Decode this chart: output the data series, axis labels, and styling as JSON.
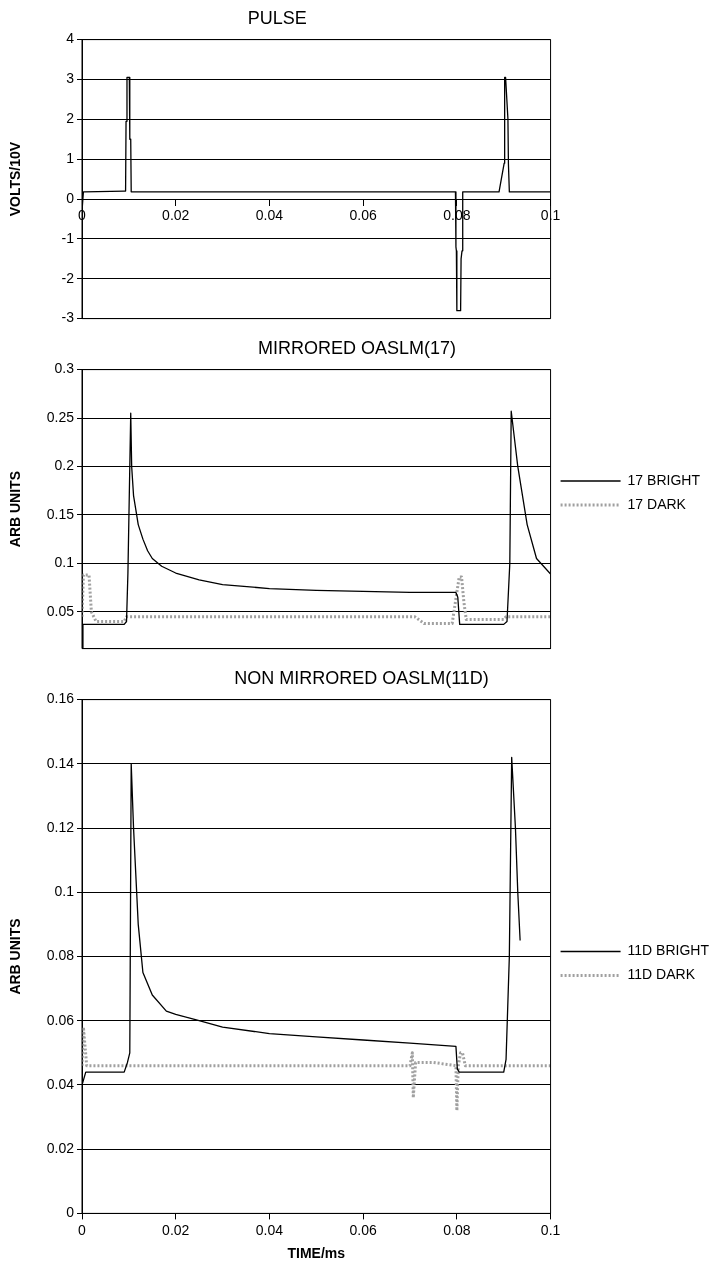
{
  "chart_data": [
    {
      "type": "line",
      "title": "PULSE",
      "ylabel": "VOLTS/10V",
      "xlim": [
        0,
        0.1
      ],
      "xticks": [
        0,
        0.02,
        0.04,
        0.06,
        0.08,
        0.1
      ],
      "ylim": [
        -3,
        4
      ],
      "yticks": [
        -3,
        -2,
        -1,
        0,
        1,
        2,
        3,
        4
      ],
      "grid": "y",
      "legend": false,
      "marker": "none",
      "series": [
        {
          "color": "#000000",
          "line_style": "solid",
          "x": [
            0,
            0.0003,
            0.0005,
            0.009,
            0.0093,
            0.0094,
            0.0096,
            0.0101,
            0.0102,
            0.0104,
            0.0105,
            0.03,
            0.05,
            0.07,
            0.0797,
            0.0798,
            0.0799,
            0.08,
            0.0808,
            0.0809,
            0.0811,
            0.0812,
            0.0813,
            0.089,
            0.0901,
            0.0902,
            0.0904,
            0.0909,
            0.091,
            0.0912,
            0.1
          ],
          "values": [
            -0.3,
            0.18,
            0.18,
            0.2,
            0.2,
            1.95,
            3.05,
            3.05,
            1.5,
            1.5,
            0.18,
            0.18,
            0.18,
            0.18,
            0.18,
            -1.2,
            -1.3,
            -2.8,
            -2.8,
            -1.5,
            -1.3,
            0.18,
            0.18,
            0.18,
            0.9,
            3.05,
            3.05,
            2.0,
            0.9,
            0.18,
            0.18
          ]
        }
      ]
    },
    {
      "type": "line",
      "title": "MIRRORED OASLM(17)",
      "ylabel": "ARB UNITS",
      "xlim": [
        0,
        0.1
      ],
      "ylim": [
        0.012,
        0.3
      ],
      "yticks": [
        0.05,
        0.1,
        0.15,
        0.2,
        0.25,
        0.3
      ],
      "grid": "y",
      "legend": "right",
      "tick_labels": "y",
      "marker": "none",
      "series": [
        {
          "name": "17 BRIGHT",
          "color": "#000000",
          "line_style": "solid",
          "x": [
            0,
            0.0002,
            0.009,
            0.0095,
            0.0098,
            0.0104,
            0.0106,
            0.011,
            0.012,
            0.013,
            0.014,
            0.015,
            0.017,
            0.02,
            0.025,
            0.03,
            0.04,
            0.05,
            0.06,
            0.07,
            0.0798,
            0.0802,
            0.0806,
            0.09,
            0.0907,
            0.0913,
            0.0916,
            0.093,
            0.095,
            0.097,
            0.1
          ],
          "values": [
            0.013,
            0.037,
            0.037,
            0.04,
            0.09,
            0.255,
            0.2,
            0.17,
            0.14,
            0.125,
            0.113,
            0.105,
            0.097,
            0.09,
            0.083,
            0.078,
            0.074,
            0.072,
            0.071,
            0.07,
            0.07,
            0.065,
            0.037,
            0.037,
            0.04,
            0.1,
            0.257,
            0.2,
            0.14,
            0.105,
            0.089
          ]
        },
        {
          "name": "17 DARK",
          "color": "#a0a0a0",
          "line_style": "dotted",
          "x": [
            0,
            0.0003,
            0.0015,
            0.002,
            0.003,
            0.009,
            0.0095,
            0.02,
            0.04,
            0.06,
            0.071,
            0.073,
            0.079,
            0.0805,
            0.081,
            0.0815,
            0.082,
            0.09,
            0.0905,
            0.1
          ],
          "values": [
            0.045,
            0.088,
            0.088,
            0.05,
            0.04,
            0.04,
            0.045,
            0.045,
            0.045,
            0.045,
            0.045,
            0.038,
            0.038,
            0.086,
            0.086,
            0.06,
            0.042,
            0.042,
            0.045,
            0.045
          ]
        }
      ]
    },
    {
      "type": "line",
      "title": "NON MIRRORED OASLM(11D)",
      "ylabel": "ARB UNITS",
      "xlabel": "TIME/ms",
      "xlim": [
        0,
        0.1
      ],
      "xticks": [
        0,
        0.02,
        0.04,
        0.06,
        0.08,
        0.1
      ],
      "ylim": [
        0,
        0.16
      ],
      "yticks": [
        0,
        0.02,
        0.04,
        0.06,
        0.08,
        0.1,
        0.12,
        0.14,
        0.16
      ],
      "grid": "y",
      "legend": "right",
      "marker": "none",
      "series": [
        {
          "name": "11D BRIGHT",
          "color": "#000000",
          "line_style": "solid",
          "x": [
            0,
            0.0008,
            0.009,
            0.0097,
            0.0102,
            0.0105,
            0.011,
            0.012,
            0.013,
            0.015,
            0.018,
            0.02,
            0.025,
            0.03,
            0.04,
            0.05,
            0.06,
            0.07,
            0.0798,
            0.0801,
            0.0805,
            0.09,
            0.0905,
            0.0912,
            0.0917,
            0.0925,
            0.093,
            0.0935
          ],
          "values": [
            0.04,
            0.044,
            0.044,
            0.047,
            0.05,
            0.14,
            0.12,
            0.09,
            0.075,
            0.068,
            0.063,
            0.062,
            0.06,
            0.058,
            0.056,
            0.055,
            0.054,
            0.053,
            0.052,
            0.045,
            0.044,
            0.044,
            0.048,
            0.08,
            0.142,
            0.12,
            0.1,
            0.085
          ]
        },
        {
          "name": "11D DARK",
          "color": "#a0a0a0",
          "line_style": "dotted",
          "x": [
            0,
            0.0003,
            0.001,
            0.02,
            0.04,
            0.06,
            0.07,
            0.0705,
            0.0707,
            0.0712,
            0.075,
            0.0798,
            0.08,
            0.0803,
            0.0808,
            0.0812,
            0.0818,
            0.09,
            0.1
          ],
          "values": [
            0.046,
            0.058,
            0.046,
            0.046,
            0.046,
            0.046,
            0.046,
            0.05,
            0.036,
            0.047,
            0.047,
            0.046,
            0.032,
            0.046,
            0.05,
            0.05,
            0.046,
            0.046,
            0.046
          ]
        }
      ]
    }
  ]
}
